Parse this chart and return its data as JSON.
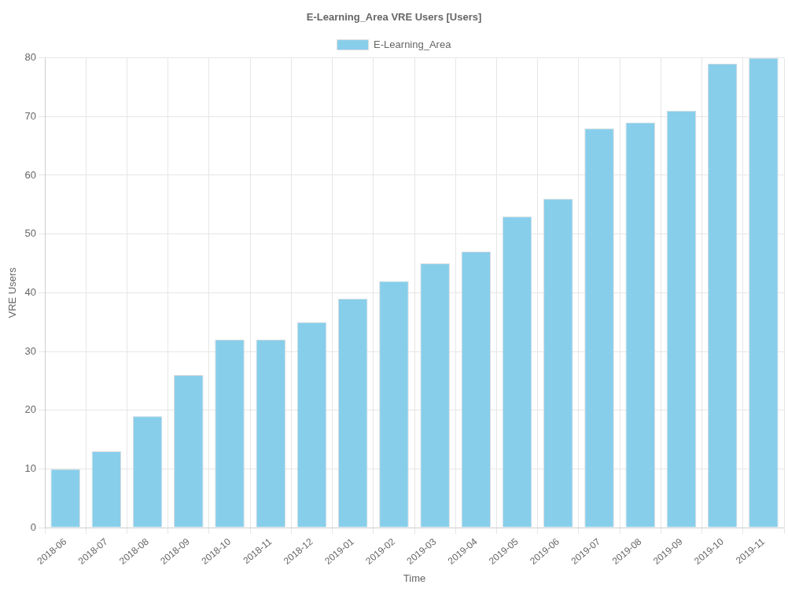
{
  "chart_data": {
    "type": "bar",
    "title": "E-Learning_Area VRE Users [Users]",
    "xlabel": "Time",
    "ylabel": "VRE Users",
    "categories": [
      "2018-06",
      "2018-07",
      "2018-08",
      "2018-09",
      "2018-10",
      "2018-11",
      "2018-12",
      "2019-01",
      "2019-02",
      "2019-03",
      "2019-04",
      "2019-05",
      "2019-06",
      "2019-07",
      "2019-08",
      "2019-09",
      "2019-10",
      "2019-11"
    ],
    "series": [
      {
        "name": "E-Learning_Area",
        "color": "#87ceeb",
        "values": [
          10,
          13,
          19,
          26,
          32,
          32,
          35,
          39,
          42,
          45,
          47,
          53,
          56,
          68,
          69,
          71,
          79,
          80
        ]
      }
    ],
    "ylim": [
      0,
      80
    ],
    "yticks": [
      0,
      10,
      20,
      30,
      40,
      50,
      60,
      70,
      80
    ],
    "grid": true,
    "legend": "top"
  }
}
